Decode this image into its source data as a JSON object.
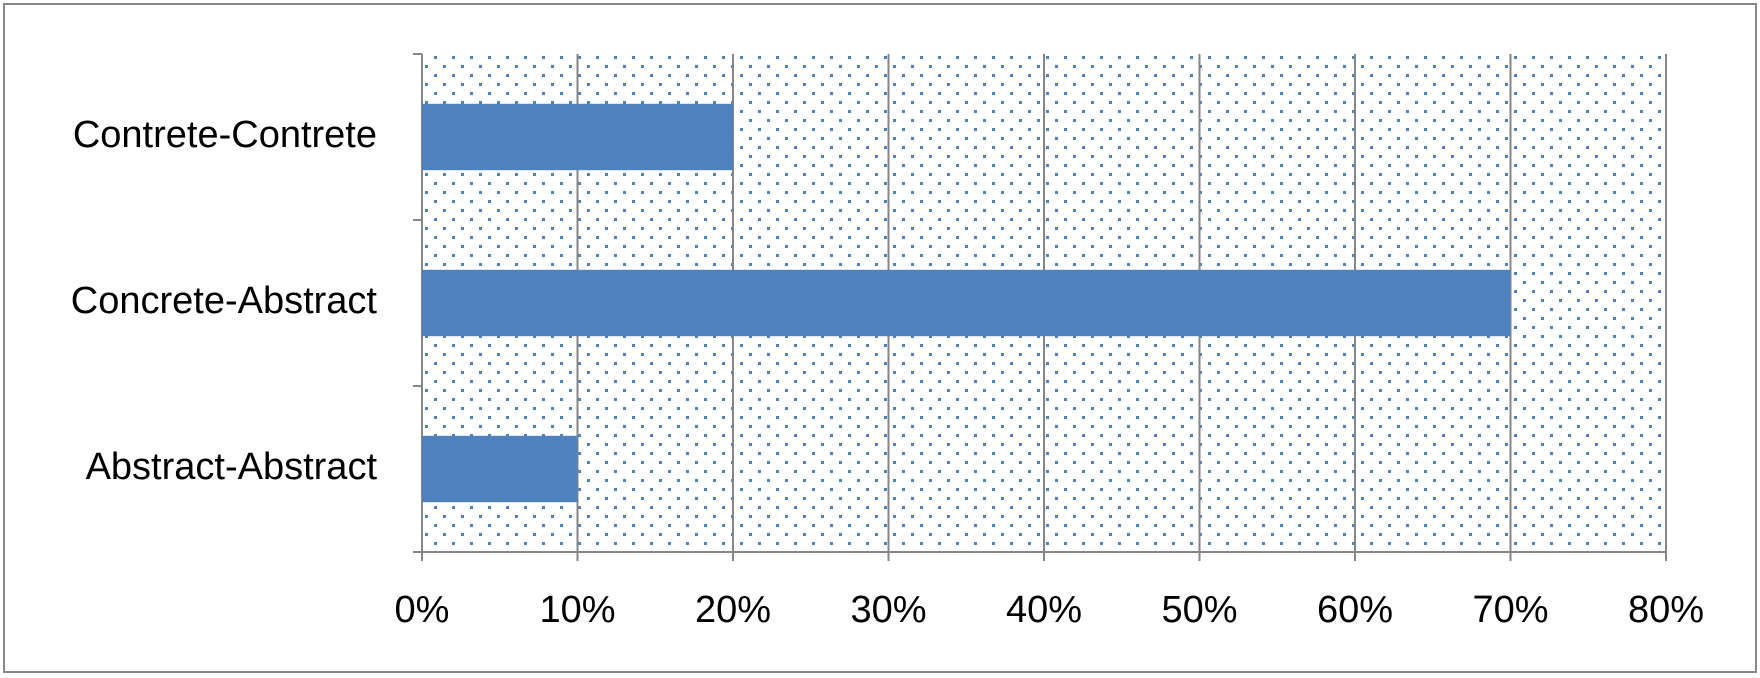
{
  "chart_data": {
    "type": "bar",
    "orientation": "horizontal",
    "categories": [
      "Contrete-Contrete",
      "Concrete-Abstract",
      "Abstract-Abstract"
    ],
    "values": [
      20,
      70,
      10
    ],
    "color": "#4f81bd",
    "xlim": [
      0,
      80
    ],
    "xticks": [
      {
        "value": 0,
        "label": "0%"
      },
      {
        "value": 10,
        "label": "10%"
      },
      {
        "value": 20,
        "label": "20%"
      },
      {
        "value": 30,
        "label": "30%"
      },
      {
        "value": 40,
        "label": "40%"
      },
      {
        "value": 50,
        "label": "50%"
      },
      {
        "value": 60,
        "label": "60%"
      },
      {
        "value": 70,
        "label": "70%"
      },
      {
        "value": 80,
        "label": "80%"
      }
    ],
    "grid": true
  }
}
